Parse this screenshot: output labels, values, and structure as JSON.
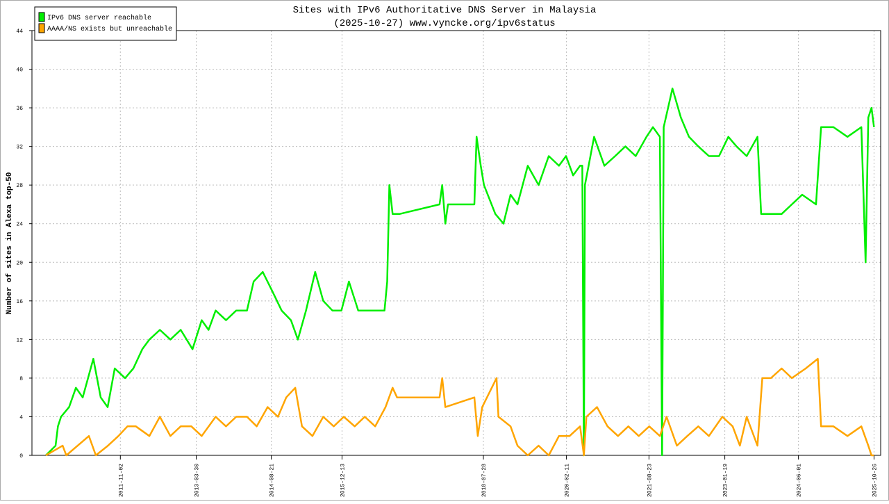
{
  "chart_data": {
    "type": "line",
    "title": "Sites with IPv6 Authoritative DNS Server in Malaysia",
    "subtitle": "(2025-10-27) www.vyncke.org/ipv6status",
    "y_label": "Number of sites in Alexa top-50",
    "legend": "top-left",
    "grid": true,
    "xlim": [
      "2010-03-13",
      "2025-12-10"
    ],
    "xticks": [
      "2011-11-02",
      "2013-03-30",
      "2014-08-21",
      "2015-12-13",
      "2018-07-28",
      "2020-02-11",
      "2021-08-23",
      "2023-01-19",
      "2024-06-01",
      "2025-10-26"
    ],
    "ylim": [
      0,
      44
    ],
    "yticks": [
      0,
      4,
      8,
      12,
      16,
      20,
      24,
      28,
      32,
      36,
      40,
      44
    ],
    "series": [
      {
        "name": "IPv6 DNS server reachable",
        "color": "#00ee00",
        "x": [
          "2010-06-15",
          "2010-08-20",
          "2010-09-05",
          "2010-09-26",
          "2010-11-20",
          "2011-01-05",
          "2011-02-20",
          "2011-05-03",
          "2011-06-22",
          "2011-08-08",
          "2011-09-25",
          "2011-12-04",
          "2012-01-29",
          "2012-03-30",
          "2012-05-17",
          "2012-07-27",
          "2012-10-06",
          "2012-12-15",
          "2013-03-05",
          "2013-05-06",
          "2013-06-22",
          "2013-08-09",
          "2013-10-18",
          "2013-12-26",
          "2014-03-09",
          "2014-04-23",
          "2014-06-24",
          "2014-08-28",
          "2014-10-30",
          "2015-01-01",
          "2015-02-17",
          "2015-04-13",
          "2015-06-14",
          "2015-08-08",
          "2015-10-09",
          "2015-12-09",
          "2016-01-29",
          "2016-04-01",
          "2016-06-09",
          "2016-08-18",
          "2016-09-26",
          "2016-10-14",
          "2016-10-29",
          "2016-11-20",
          "2017-01-06",
          "2017-10-04",
          "2017-10-22",
          "2017-11-12",
          "2017-11-30",
          "2018-05-28",
          "2018-06-12",
          "2018-07-10",
          "2018-08-01",
          "2018-10-17",
          "2018-12-11",
          "2019-01-28",
          "2019-03-16",
          "2019-05-25",
          "2019-08-06",
          "2019-10-14",
          "2019-12-22",
          "2020-02-08",
          "2020-03-27",
          "2020-05-13",
          "2020-05-28",
          "2020-06-08",
          "2020-06-15",
          "2020-08-16",
          "2020-10-25",
          "2021-01-06",
          "2021-03-16",
          "2021-05-25",
          "2021-08-06",
          "2021-09-19",
          "2021-11-05",
          "2021-11-20",
          "2021-12-01",
          "2022-01-29",
          "2022-03-27",
          "2022-05-21",
          "2022-07-23",
          "2022-10-03",
          "2022-12-11",
          "2023-02-12",
          "2023-04-08",
          "2023-06-16",
          "2023-08-28",
          "2023-09-22",
          "2023-11-27",
          "2024-02-08",
          "2024-04-17",
          "2024-06-26",
          "2024-09-28",
          "2024-11-01",
          "2025-01-24",
          "2025-04-29",
          "2025-08-01",
          "2025-08-30",
          "2025-09-17",
          "2025-10-09",
          "2025-10-26"
        ],
        "values": [
          0,
          1,
          3,
          4,
          5,
          7,
          6,
          10,
          6,
          5,
          9,
          8,
          9,
          11,
          12,
          13,
          12,
          13,
          11,
          14,
          13,
          15,
          14,
          15,
          15,
          18,
          19,
          17,
          15,
          14,
          12,
          15,
          19,
          16,
          15,
          15,
          18,
          15,
          15,
          15,
          15,
          18,
          28,
          25,
          25,
          26,
          28,
          24,
          26,
          26,
          33,
          30,
          28,
          25,
          24,
          27,
          26,
          30,
          28,
          31,
          30,
          31,
          29,
          30,
          30,
          0,
          28,
          33,
          30,
          31,
          32,
          31,
          33,
          34,
          33,
          0,
          34,
          38,
          35,
          33,
          32,
          31,
          31,
          33,
          32,
          31,
          33,
          25,
          25,
          25,
          26,
          27,
          26,
          34,
          34,
          33,
          34,
          20,
          35,
          36,
          34
        ]
      },
      {
        "name": "AAAA/NS exists but unreachable",
        "color": "#ffa500",
        "x": [
          "2010-06-15",
          "2010-10-07",
          "2010-11-01",
          "2011-04-03",
          "2011-05-20",
          "2011-08-10",
          "2011-10-20",
          "2011-12-20",
          "2012-02-15",
          "2012-05-17",
          "2012-07-27",
          "2012-10-06",
          "2012-12-15",
          "2013-02-25",
          "2013-05-06",
          "2013-08-09",
          "2013-10-18",
          "2013-12-26",
          "2014-03-09",
          "2014-05-14",
          "2014-07-27",
          "2014-10-05",
          "2014-11-30",
          "2015-01-30",
          "2015-03-17",
          "2015-05-27",
          "2015-08-08",
          "2015-10-18",
          "2015-12-25",
          "2016-03-08",
          "2016-05-15",
          "2016-07-25",
          "2016-10-03",
          "2016-11-20",
          "2016-12-20",
          "2017-10-04",
          "2017-10-22",
          "2017-11-12",
          "2018-05-28",
          "2018-06-20",
          "2018-07-20",
          "2018-10-25",
          "2018-11-07",
          "2019-01-28",
          "2019-03-16",
          "2019-05-25",
          "2019-08-06",
          "2019-10-14",
          "2019-12-22",
          "2020-03-03",
          "2020-05-13",
          "2020-06-08",
          "2020-06-25",
          "2020-09-05",
          "2020-11-15",
          "2021-01-25",
          "2021-04-05",
          "2021-06-15",
          "2021-08-25",
          "2021-11-05",
          "2021-12-20",
          "2022-02-28",
          "2022-05-10",
          "2022-07-23",
          "2022-10-03",
          "2023-01-02",
          "2023-03-13",
          "2023-05-01",
          "2023-06-16",
          "2023-08-28",
          "2023-09-30",
          "2023-11-27",
          "2024-02-08",
          "2024-04-17",
          "2024-07-20",
          "2024-10-10",
          "2024-11-01",
          "2025-01-24",
          "2025-04-29",
          "2025-08-01",
          "2025-09-17",
          "2025-10-09",
          "2025-10-26"
        ],
        "values": [
          0,
          1,
          0,
          2,
          0,
          1,
          2,
          3,
          3,
          2,
          4,
          2,
          3,
          3,
          2,
          4,
          3,
          4,
          4,
          3,
          5,
          4,
          6,
          7,
          3,
          2,
          4,
          3,
          4,
          3,
          4,
          3,
          5,
          7,
          6,
          6,
          8,
          5,
          6,
          2,
          5,
          8,
          4,
          3,
          1,
          0,
          1,
          0,
          2,
          2,
          3,
          0,
          4,
          5,
          3,
          2,
          3,
          2,
          3,
          2,
          4,
          1,
          2,
          3,
          2,
          4,
          3,
          1,
          4,
          1,
          8,
          8,
          9,
          8,
          9,
          10,
          3,
          3,
          2,
          3,
          1,
          0,
          0
        ]
      }
    ]
  }
}
